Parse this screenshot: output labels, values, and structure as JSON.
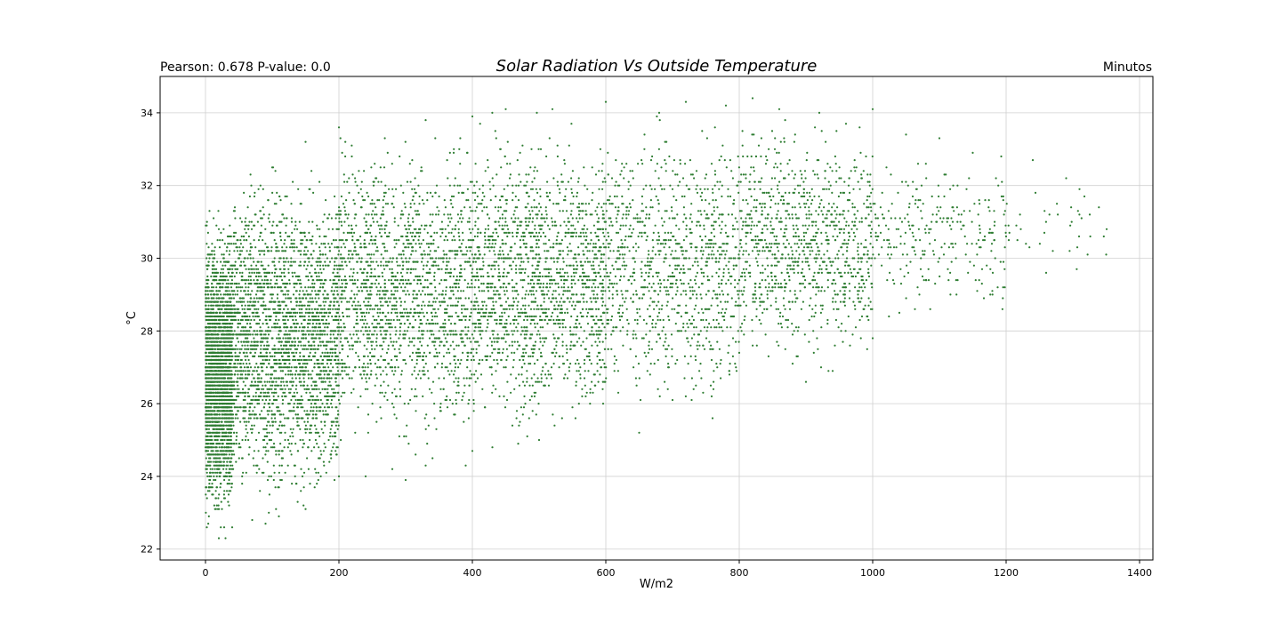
{
  "chart_data": {
    "type": "scatter",
    "title": "Solar Radiation Vs Outside Temperature",
    "subtitle_left": "Pearson: 0.678 P-value: 0.0",
    "subtitle_right": "Minutos",
    "xlabel": "W/m2",
    "ylabel": "°C",
    "xlim": [
      -68,
      1420
    ],
    "ylim": [
      21.7,
      35.0
    ],
    "xticks": [
      0,
      200,
      400,
      600,
      800,
      1000,
      1200,
      1400
    ],
    "yticks": [
      22,
      24,
      26,
      28,
      30,
      32,
      34
    ],
    "xtick_labels": [
      "0",
      "200",
      "400",
      "600",
      "800",
      "1000",
      "1200",
      "1400"
    ],
    "ytick_labels": [
      "22",
      "24",
      "26",
      "28",
      "30",
      "32",
      "34"
    ],
    "grid": true,
    "marker_color": "#2e7d32",
    "point_shape": "small dots",
    "correlation": {
      "pearson": 0.678,
      "p_value": 0.0
    },
    "series": [
      {
        "values_by_radiation_band": [
          {
            "x_range": [
              0,
              40
            ],
            "y_range": [
              22.3,
              31.5
            ],
            "density": "very high"
          },
          {
            "x_range": [
              40,
              200
            ],
            "y_range": [
              22.6,
              33.0
            ],
            "density": "very high"
          },
          {
            "x_range": [
              200,
              400
            ],
            "y_range": [
              24.2,
              33.9
            ],
            "density": "high"
          },
          {
            "x_range": [
              400,
              600
            ],
            "y_range": [
              24.6,
              34.2
            ],
            "density": "high"
          },
          {
            "x_range": [
              600,
              800
            ],
            "y_range": [
              25.2,
              34.4
            ],
            "density": "medium"
          },
          {
            "x_range": [
              800,
              1000
            ],
            "y_range": [
              26.5,
              34.3
            ],
            "density": "medium"
          },
          {
            "x_range": [
              1000,
              1200
            ],
            "y_range": [
              27.8,
              33.4
            ],
            "density": "low"
          },
          {
            "x_range": [
              1200,
              1360
            ],
            "y_range": [
              29.5,
              32.3
            ],
            "density": "very low"
          }
        ],
        "points": [
          [
            2,
            22.6
          ],
          [
            5,
            22.9
          ],
          [
            20,
            22.3
          ],
          [
            30,
            22.3
          ],
          [
            40,
            22.6
          ],
          [
            70,
            22.8
          ],
          [
            90,
            22.7
          ],
          [
            110,
            22.9
          ],
          [
            150,
            23.1
          ],
          [
            200,
            24.0
          ],
          [
            240,
            24.0
          ],
          [
            280,
            24.2
          ],
          [
            300,
            23.9
          ],
          [
            330,
            24.3
          ],
          [
            390,
            24.3
          ],
          [
            400,
            24.7
          ],
          [
            430,
            24.8
          ],
          [
            460,
            25.4
          ],
          [
            500,
            25.0
          ],
          [
            550,
            25.9
          ],
          [
            650,
            25.2
          ],
          [
            700,
            26.1
          ],
          [
            760,
            25.6
          ],
          [
            800,
            27.4
          ],
          [
            880,
            27.1
          ],
          [
            900,
            26.6
          ],
          [
            940,
            26.9
          ],
          [
            970,
            27.9
          ],
          [
            1000,
            27.8
          ],
          [
            1040,
            28.5
          ],
          [
            1080,
            29.4
          ],
          [
            1100,
            30.0
          ],
          [
            1150,
            32.9
          ],
          [
            1180,
            29.6
          ],
          [
            1200,
            30.6
          ],
          [
            1240,
            32.7
          ],
          [
            1260,
            29.6
          ],
          [
            1270,
            30.2
          ],
          [
            1290,
            32.2
          ],
          [
            1310,
            31.9
          ],
          [
            1350,
            30.1
          ],
          [
            100,
            32.5
          ],
          [
            150,
            33.2
          ],
          [
            200,
            33.6
          ],
          [
            330,
            33.8
          ],
          [
            400,
            33.9
          ],
          [
            450,
            34.1
          ],
          [
            520,
            34.1
          ],
          [
            600,
            34.3
          ],
          [
            680,
            34.0
          ],
          [
            720,
            34.3
          ],
          [
            780,
            34.2
          ],
          [
            820,
            34.4
          ],
          [
            860,
            34.1
          ],
          [
            920,
            34.0
          ],
          [
            960,
            33.7
          ],
          [
            1000,
            34.1
          ],
          [
            1050,
            33.4
          ],
          [
            1100,
            33.3
          ],
          [
            15,
            29.5
          ],
          [
            20,
            28.0
          ],
          [
            25,
            26.0
          ],
          [
            35,
            27.5
          ],
          [
            60,
            25.0
          ],
          [
            80,
            30.5
          ],
          [
            120,
            28.2
          ],
          [
            150,
            27.0
          ],
          [
            180,
            29.8
          ],
          [
            220,
            30.8
          ],
          [
            250,
            28.6
          ],
          [
            280,
            26.3
          ],
          [
            320,
            31.2
          ],
          [
            360,
            29.0
          ],
          [
            410,
            27.6
          ],
          [
            450,
            30.4
          ],
          [
            480,
            32.0
          ],
          [
            520,
            28.9
          ],
          [
            560,
            31.5
          ],
          [
            600,
            29.7
          ],
          [
            640,
            32.4
          ],
          [
            680,
            30.6
          ],
          [
            720,
            28.5
          ],
          [
            760,
            31.9
          ],
          [
            800,
            29.4
          ],
          [
            840,
            32.6
          ],
          [
            880,
            30.1
          ],
          [
            920,
            31.4
          ],
          [
            960,
            29.2
          ],
          [
            990,
            32.8
          ],
          [
            1020,
            30.9
          ],
          [
            1060,
            31.7
          ],
          [
            1120,
            31.0
          ]
        ]
      }
    ]
  }
}
